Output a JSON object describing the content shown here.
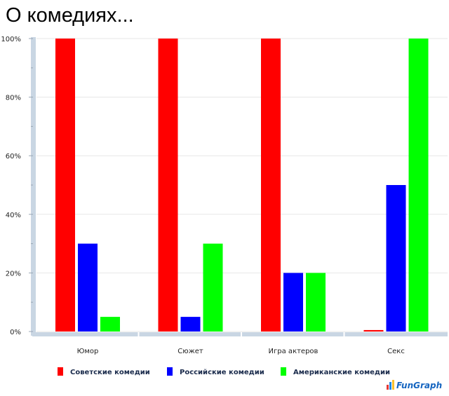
{
  "title": "О комедиях...",
  "brand": "FunGraph",
  "chart_data": {
    "type": "bar",
    "categories": [
      "Юмор",
      "Сюжет",
      "Игра актеров",
      "Секс"
    ],
    "series": [
      {
        "name": "Советские комедии",
        "color": "#ff0000",
        "values": [
          100,
          100,
          100,
          0.5
        ]
      },
      {
        "name": "Российские комедии",
        "color": "#0000ff",
        "values": [
          30,
          5,
          20,
          50
        ]
      },
      {
        "name": "Американские комедии",
        "color": "#00ff00",
        "values": [
          5,
          30,
          20,
          100
        ]
      }
    ],
    "ylim": [
      0,
      100
    ],
    "yticks": [
      "0%",
      "20%",
      "40%",
      "60%",
      "80%",
      "100%"
    ],
    "grid": true,
    "legend": "bottom"
  }
}
